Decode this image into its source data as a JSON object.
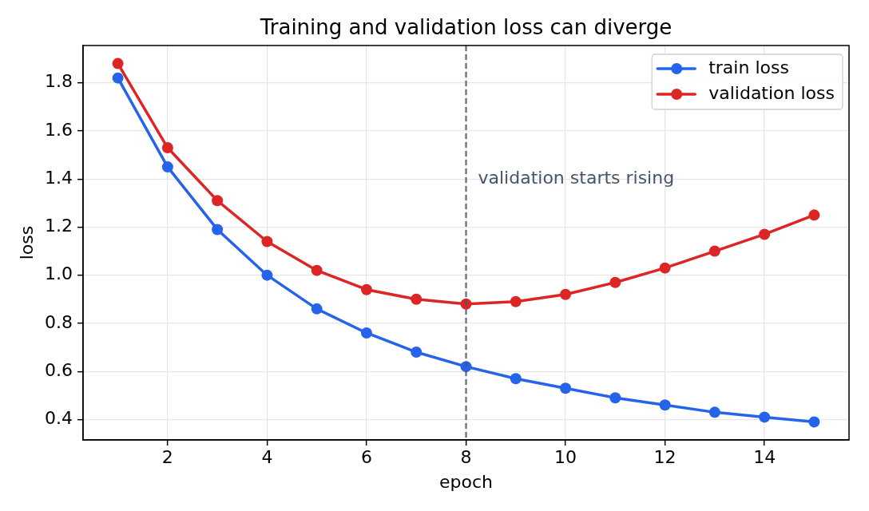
{
  "chart_data": {
    "type": "line",
    "title": "Training and validation loss can diverge",
    "xlabel": "epoch",
    "ylabel": "loss",
    "x": [
      1,
      2,
      3,
      4,
      5,
      6,
      7,
      8,
      9,
      10,
      11,
      12,
      13,
      14,
      15
    ],
    "series": [
      {
        "name": "train loss",
        "color": "#2563eb",
        "values": [
          1.82,
          1.45,
          1.19,
          1.0,
          0.86,
          0.76,
          0.68,
          0.62,
          0.57,
          0.53,
          0.49,
          0.46,
          0.43,
          0.41,
          0.39
        ]
      },
      {
        "name": "validation loss",
        "color": "#dc2626",
        "values": [
          1.88,
          1.53,
          1.31,
          1.14,
          1.02,
          0.94,
          0.9,
          0.88,
          0.89,
          0.92,
          0.97,
          1.03,
          1.1,
          1.17,
          1.25
        ]
      }
    ],
    "xlim": [
      0.3,
      15.7
    ],
    "ylim": [
      0.315,
      1.955
    ],
    "xticks": [
      2,
      4,
      6,
      8,
      10,
      12,
      14
    ],
    "yticks": [
      0.4,
      0.6,
      0.8,
      {
        "value": 1,
        "label": "1.0"
      },
      1.2,
      1.4,
      1.6,
      1.8
    ],
    "ref_lines": [
      {
        "axis": "x",
        "value": 8,
        "label": "validation starts rising",
        "color": "#475569",
        "line_style": "dashed"
      }
    ],
    "grid": true,
    "legend": "top right",
    "marker": "circle",
    "line_style": "solid"
  }
}
